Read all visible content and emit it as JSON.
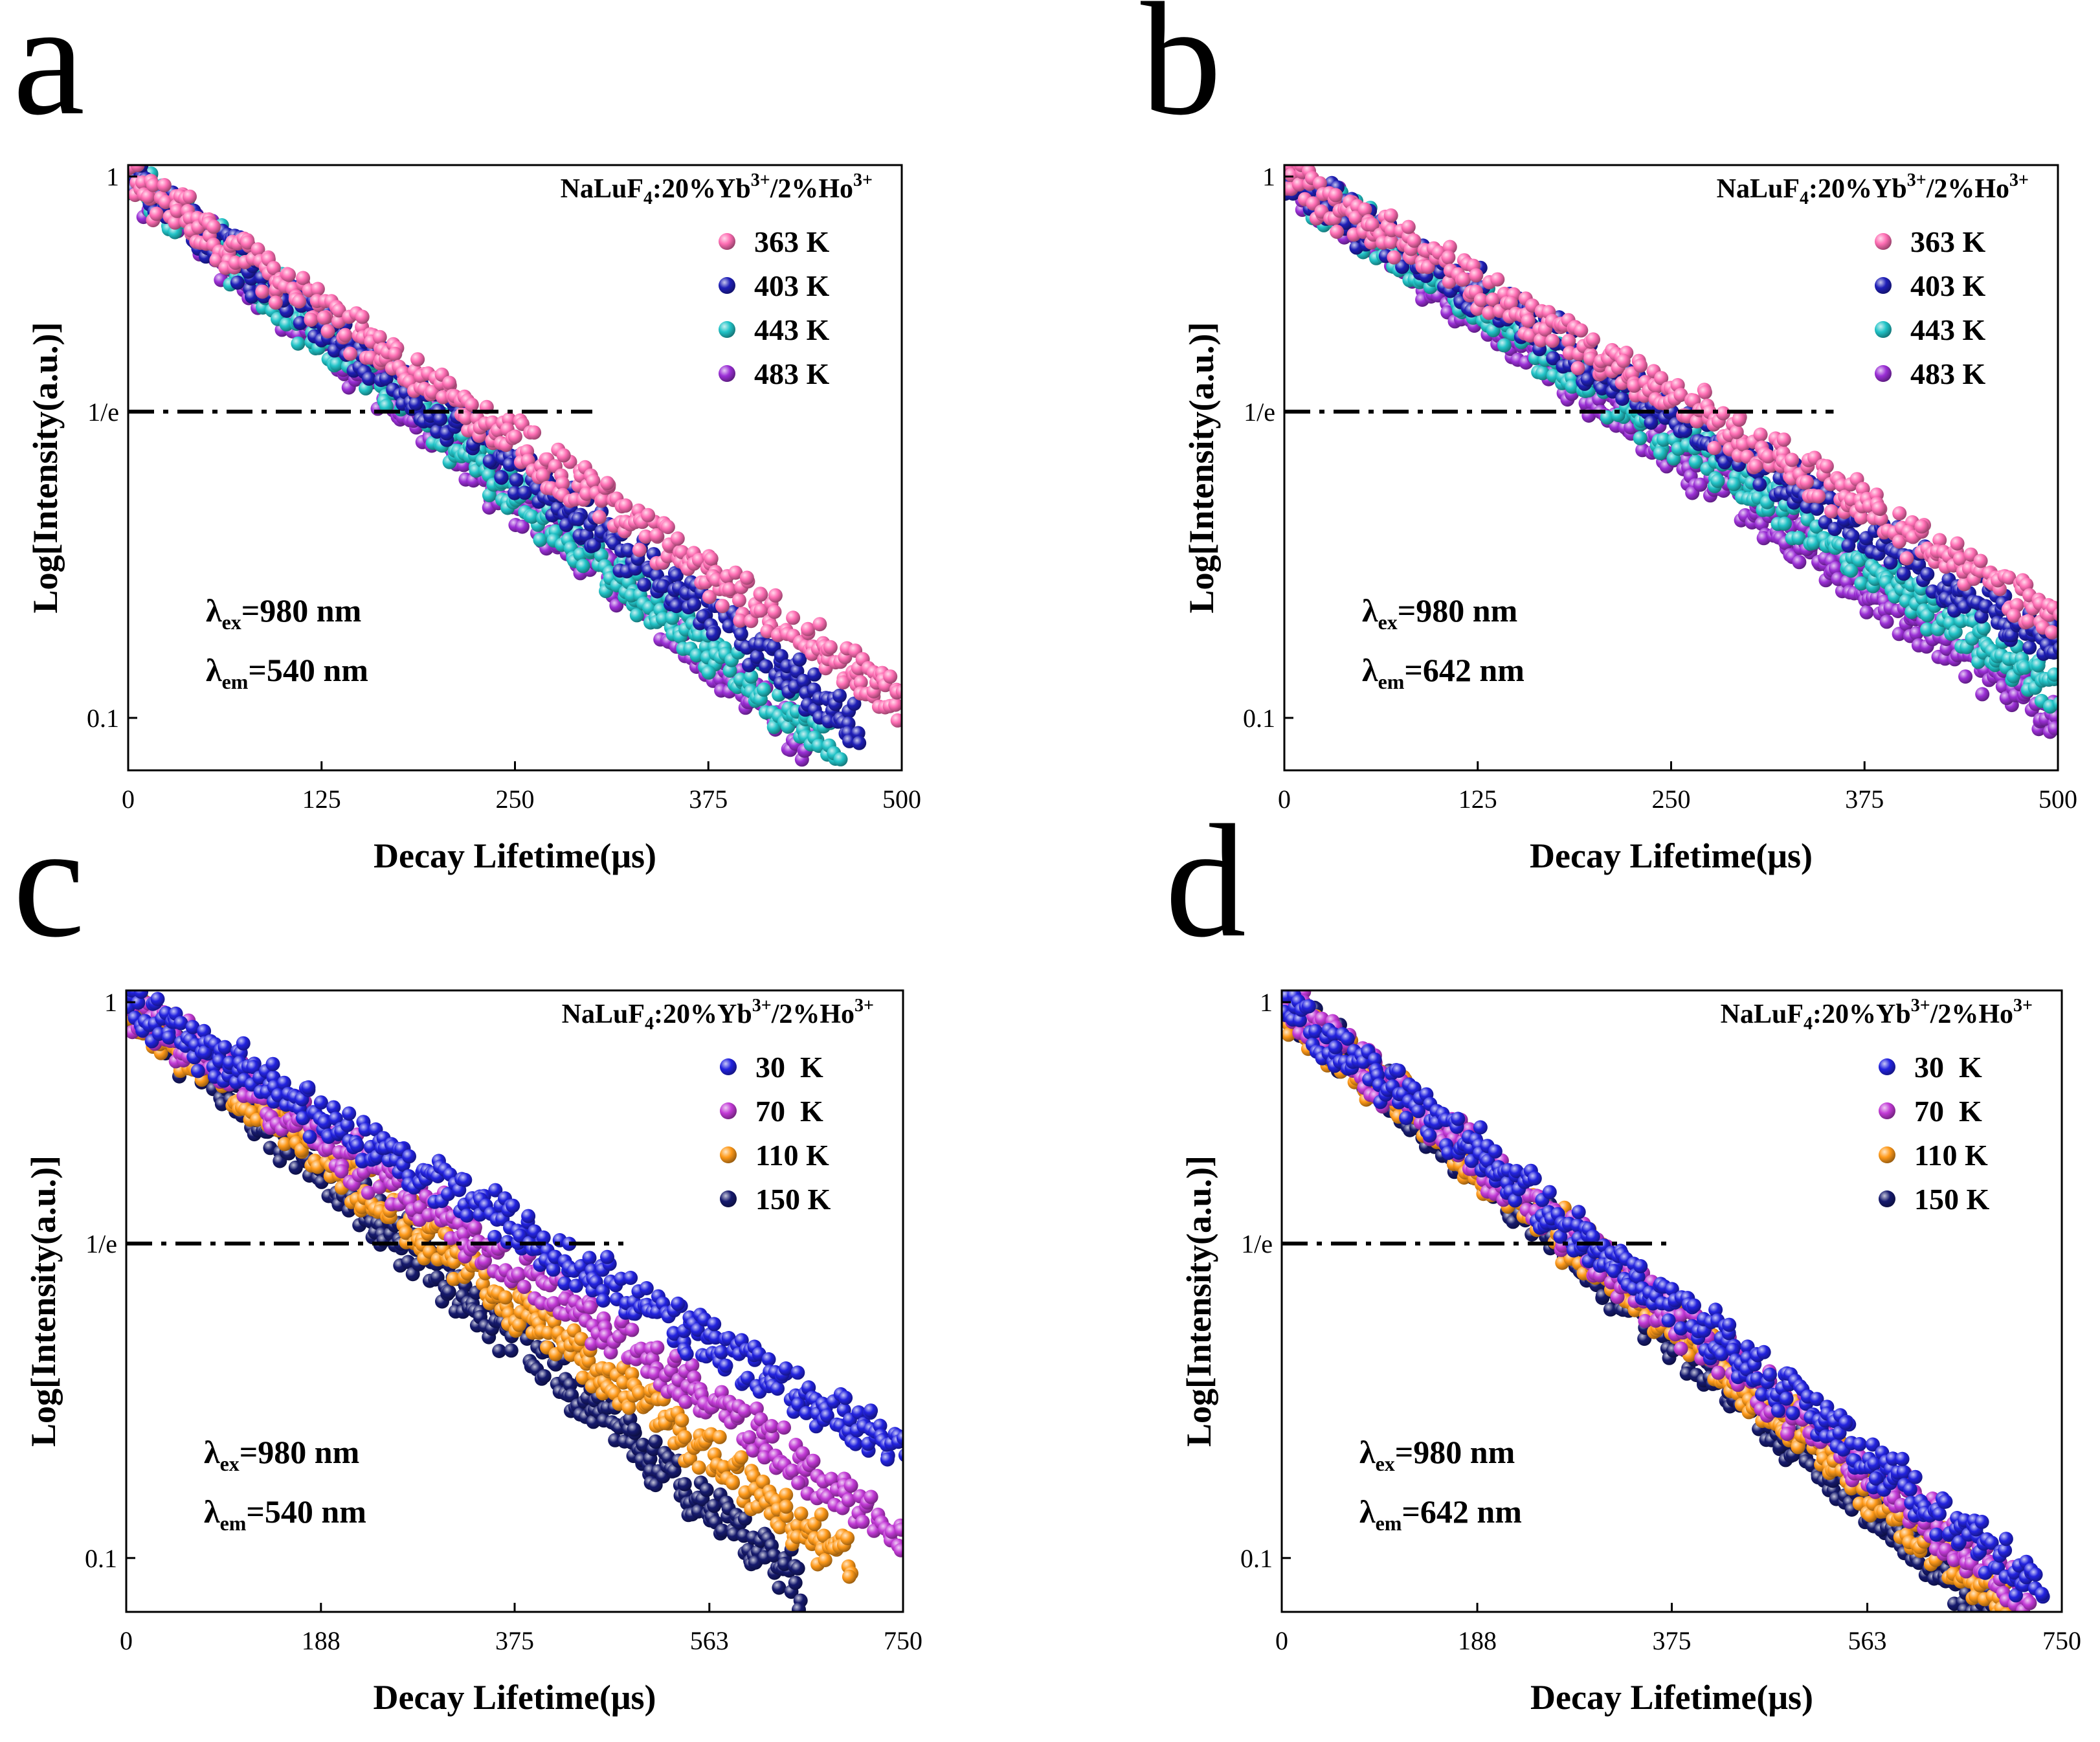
{
  "figure": {
    "panel_labels": [
      "a",
      "b",
      "c",
      "d"
    ]
  },
  "chart_data": [
    {
      "panel": "a",
      "type": "scatter",
      "yscale": "log",
      "xlabel": "Decay Lifetime(μs)",
      "ylabel": "Log[Intensity(a.u.)]",
      "xlim": [
        0,
        500
      ],
      "ylim": [
        0.08,
        1.05
      ],
      "xticks": [
        0,
        125,
        250,
        375,
        500
      ],
      "xtick_labels": [
        "0",
        "125",
        "250",
        "375",
        "500"
      ],
      "yticks": [
        1,
        0.3679,
        0.1
      ],
      "ytick_labels": [
        "1",
        "1/e",
        "0.1"
      ],
      "ref_line": {
        "label": "1/e",
        "y": 0.3679,
        "x_end": 300,
        "style": "dash-dot"
      },
      "sample": {
        "main": "NaLuF",
        "sub1": "4",
        "mid1": ":20%Yb",
        "sup1": "3+",
        "mid2": "/2%Ho",
        "sup2": "3+"
      },
      "annotations": [
        {
          "symbol": "λ",
          "sub": "ex",
          "text": "=980 nm"
        },
        {
          "symbol": "λ",
          "sub": "em",
          "text": "=540 nm"
        }
      ],
      "legend": [
        "363 K",
        "403 K",
        "443 K",
        "483 K"
      ],
      "series": [
        {
          "name": "363 K",
          "color": "#ff6eb4",
          "tau": 222,
          "x_max": 500
        },
        {
          "name": "403 K",
          "color": "#1f1fb8",
          "tau": 202,
          "x_max": 470
        },
        {
          "name": "443 K",
          "color": "#22c4c8",
          "tau": 187,
          "x_max": 460
        },
        {
          "name": "483 K",
          "color": "#9b2fd6",
          "tau": 182,
          "x_max": 440
        }
      ]
    },
    {
      "panel": "b",
      "type": "scatter",
      "yscale": "log",
      "xlabel": "Decay Lifetime(μs)",
      "ylabel": "Log[Intensity(a.u.)]",
      "xlim": [
        0,
        500
      ],
      "ylim": [
        0.08,
        1.05
      ],
      "xticks": [
        0,
        125,
        250,
        375,
        500
      ],
      "xtick_labels": [
        "0",
        "125",
        "250",
        "375",
        "500"
      ],
      "yticks": [
        1,
        0.3679,
        0.1
      ],
      "ytick_labels": [
        "1",
        "1/e",
        "0.1"
      ],
      "ref_line": {
        "label": "1/e",
        "y": 0.3679,
        "x_end": 355,
        "style": "dash-dot"
      },
      "sample": {
        "main": "NaLuF",
        "sub1": "4",
        "mid1": ":20%Yb",
        "sup1": "3+",
        "mid2": "/2%Ho",
        "sup2": "3+"
      },
      "annotations": [
        {
          "symbol": "λ",
          "sub": "ex",
          "text": "=980 nm"
        },
        {
          "symbol": "λ",
          "sub": "em",
          "text": "=642 nm"
        }
      ],
      "legend": [
        "363 K",
        "403 K",
        "443 K",
        "483 K"
      ],
      "series": [
        {
          "name": "363 K",
          "color": "#ff6eb4",
          "tau": 265,
          "x_max": 500
        },
        {
          "name": "403 K",
          "color": "#1f1fb8",
          "tau": 250,
          "x_max": 500
        },
        {
          "name": "443 K",
          "color": "#22c4c8",
          "tau": 228,
          "x_max": 500
        },
        {
          "name": "483 K",
          "color": "#9b2fd6",
          "tau": 215,
          "x_max": 500
        }
      ]
    },
    {
      "panel": "c",
      "type": "scatter",
      "yscale": "log",
      "xlabel": "Decay Lifetime(μs)",
      "ylabel": "Log[Intensity(a.u.)]",
      "xlim": [
        0,
        750
      ],
      "ylim": [
        0.08,
        1.05
      ],
      "xticks": [
        0,
        188,
        375,
        563,
        750
      ],
      "xtick_labels": [
        "0",
        "188",
        "375",
        "563",
        "750"
      ],
      "yticks": [
        1,
        0.3679,
        0.1
      ],
      "ytick_labels": [
        "1",
        "1/e",
        "0.1"
      ],
      "ref_line": {
        "label": "1/e",
        "y": 0.3679,
        "x_end": 480,
        "style": "dash-dot"
      },
      "sample": {
        "main": "NaLuF",
        "sub1": "4",
        "mid1": ":20%Yb",
        "sup1": "3+",
        "mid2": "/2%Ho",
        "sup2": "3+"
      },
      "annotations": [
        {
          "symbol": "λ",
          "sub": "ex",
          "text": "=980 nm"
        },
        {
          "symbol": "λ",
          "sub": "em",
          "text": "=540 nm"
        }
      ],
      "legend": [
        "30  K",
        "70  K",
        "110 K",
        "150 K"
      ],
      "series": [
        {
          "name": "30 K",
          "color": "#2323e0",
          "tau": 400,
          "x_max": 750
        },
        {
          "name": "70 K",
          "color": "#c23ad6",
          "tau": 340,
          "x_max": 750
        },
        {
          "name": "110 K",
          "color": "#ff9a1a",
          "tau": 300,
          "x_max": 700
        },
        {
          "name": "150 K",
          "color": "#161a6e",
          "tau": 270,
          "x_max": 650
        }
      ]
    },
    {
      "panel": "d",
      "type": "scatter",
      "yscale": "log",
      "xlabel": "Decay Lifetime(μs)",
      "ylabel": "Log[Intensity(a.u.)]",
      "xlim": [
        0,
        750
      ],
      "ylim": [
        0.08,
        1.05
      ],
      "xticks": [
        0,
        188,
        375,
        563,
        750
      ],
      "xtick_labels": [
        "0",
        "188",
        "375",
        "563",
        "750"
      ],
      "yticks": [
        1,
        0.3679,
        0.1
      ],
      "ytick_labels": [
        "1",
        "1/e",
        "0.1"
      ],
      "ref_line": {
        "label": "1/e",
        "y": 0.3679,
        "x_end": 375,
        "style": "dash-dot"
      },
      "sample": {
        "main": "NaLuF",
        "sub1": "4",
        "mid1": ":20%Yb",
        "sup1": "3+",
        "mid2": "/2%Ho",
        "sup2": "3+"
      },
      "annotations": [
        {
          "symbol": "λ",
          "sub": "ex",
          "text": "=980 nm"
        },
        {
          "symbol": "λ",
          "sub": "em",
          "text": "=642 nm"
        }
      ],
      "legend": [
        "30  K",
        "70  K",
        "110 K",
        "150 K"
      ],
      "series": [
        {
          "name": "30 K",
          "color": "#2323e0",
          "tau": 300,
          "x_max": 730
        },
        {
          "name": "70 K",
          "color": "#c23ad6",
          "tau": 290,
          "x_max": 720
        },
        {
          "name": "110 K",
          "color": "#ff9a1a",
          "tau": 280,
          "x_max": 700
        },
        {
          "name": "150 K",
          "color": "#161a6e",
          "tau": 270,
          "x_max": 680
        }
      ]
    }
  ]
}
